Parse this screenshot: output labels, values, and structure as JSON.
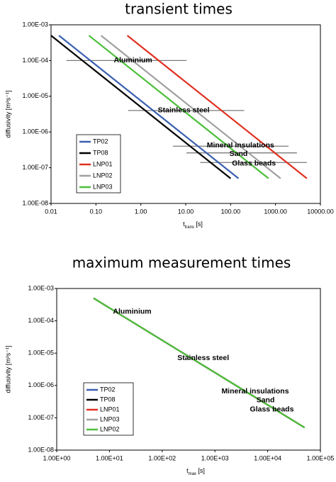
{
  "chart_data": [
    {
      "type": "line",
      "title": "transient times",
      "xlabel": [
        "t",
        "trans",
        " [s]"
      ],
      "ylabel": "diffusivity [m²s⁻¹]",
      "log_x": true,
      "log_y": true,
      "grid": false,
      "legend": "lower left",
      "xlim": [
        0.01,
        10000
      ],
      "ylim": [
        1e-08,
        0.001
      ],
      "xticks": [
        0.01,
        {
          "value": 0.1,
          "label": "0.10"
        },
        {
          "value": 1,
          "label": "1.00"
        },
        {
          "value": 10,
          "label": "10.00"
        },
        {
          "value": 100,
          "label": "100.00"
        },
        {
          "value": 1000,
          "label": "1000.00"
        },
        {
          "value": 10000,
          "label": "10000.00"
        }
      ],
      "yticks": [
        {
          "value": 1e-08,
          "label": "1.00E-08"
        },
        {
          "value": 1e-07,
          "label": "1.00E-07"
        },
        {
          "value": 1e-06,
          "label": "1.00E-06"
        },
        {
          "value": 1e-05,
          "label": "1.00E-05"
        },
        {
          "value": 0.0001,
          "label": "1.00E-04"
        },
        {
          "value": 0.001,
          "label": "1.00E-03"
        }
      ],
      "series": [
        {
          "name": "TP02",
          "color": "#3a5fb0",
          "x": [
            0.015,
            150
          ],
          "values": [
            0.0005,
            5e-08
          ]
        },
        {
          "name": "TP08",
          "color": "#000000",
          "x": [
            0.01,
            100
          ],
          "values": [
            0.0005,
            5e-08
          ]
        },
        {
          "name": "LNP01",
          "color": "#e03020",
          "x": [
            0.5,
            5000
          ],
          "values": [
            0.0005,
            5e-08
          ]
        },
        {
          "name": "LNP02",
          "color": "#a0a0a0",
          "x": [
            0.13,
            1300
          ],
          "values": [
            0.0005,
            5e-08
          ]
        },
        {
          "name": "LNP03",
          "color": "#4cbf3a",
          "x": [
            0.07,
            700
          ],
          "values": [
            0.0005,
            5e-08
          ]
        }
      ],
      "ranges": [
        {
          "x": [
            0.022,
            10.4
          ],
          "y": 0.0001
        },
        {
          "x": [
            0.52,
            200
          ],
          "y": 4e-06
        },
        {
          "x": [
            5.2,
            1950
          ],
          "y": 4e-07
        },
        {
          "x": [
            10.4,
            3000
          ],
          "y": 2.6e-07
        },
        {
          "x": [
            21,
            5000
          ],
          "y": 1.4e-07
        }
      ],
      "annotations": [
        {
          "text": "Aluminium",
          "x": 0.67,
          "y": 0.0001
        },
        {
          "text": "Stainless steel",
          "x": 9,
          "y": 4e-06
        },
        {
          "text": "Mineral insulations",
          "x": 166,
          "y": 4.2e-07
        },
        {
          "text": "Sand",
          "x": 150,
          "y": 2.4e-07
        },
        {
          "text": "Glass beads",
          "x": 330,
          "y": 1.3e-07
        }
      ]
    },
    {
      "type": "line",
      "title": "maximum measurement times",
      "xlabel": [
        "t",
        "max",
        " [s]"
      ],
      "ylabel": "diffusivity [m²s⁻¹]",
      "log_x": true,
      "log_y": true,
      "grid": false,
      "legend": "lower left",
      "xlim": [
        1,
        100000
      ],
      "ylim": [
        1e-08,
        0.001
      ],
      "xticks": [
        {
          "value": 1,
          "label": "1.00E+00"
        },
        {
          "value": 10,
          "label": "1.00E+01"
        },
        {
          "value": 100,
          "label": "1.00E+02"
        },
        {
          "value": 1000,
          "label": "1.00E+03"
        },
        {
          "value": 10000,
          "label": "1.00E+04"
        },
        {
          "value": 100000,
          "label": "1.00E+05"
        }
      ],
      "yticks": [
        {
          "value": 1e-08,
          "label": "1.00E-08"
        },
        {
          "value": 1e-07,
          "label": "1.00E-07"
        },
        {
          "value": 1e-06,
          "label": "1.00E-06"
        },
        {
          "value": 1e-05,
          "label": "1.00E-05"
        },
        {
          "value": 0.0001,
          "label": "1.00E-04"
        },
        {
          "value": 0.001,
          "label": "1.00E-03"
        }
      ],
      "series": [
        {
          "name": "TP02",
          "color": "#3a5fb0",
          "x": [
            5,
            50000
          ],
          "values": [
            0.0005,
            5e-08
          ]
        },
        {
          "name": "TP08",
          "color": "#000000",
          "x": [
            5,
            50000
          ],
          "values": [
            0.0005,
            5e-08
          ]
        },
        {
          "name": "LNP01",
          "color": "#e03020",
          "x": [
            5,
            50000
          ],
          "values": [
            0.0005,
            5e-08
          ]
        },
        {
          "name": "LNP03",
          "color": "#a0a0a0",
          "x": [
            5,
            50000
          ],
          "values": [
            0.0005,
            5e-08
          ]
        },
        {
          "name": "LNP02",
          "color": "#4cbf3a",
          "x": [
            5,
            50000
          ],
          "values": [
            0.0005,
            5e-08
          ]
        }
      ],
      "annotations": [
        {
          "text": "Aluminium",
          "x": 27,
          "y": 0.00019
        },
        {
          "text": "Stainless steel",
          "x": 600,
          "y": 7e-06
        },
        {
          "text": "Mineral insulations",
          "x": 5800,
          "y": 6.6e-07
        },
        {
          "text": "Sand",
          "x": 9100,
          "y": 3.5e-07
        },
        {
          "text": "Glass beads",
          "x": 12000,
          "y": 1.8e-07
        }
      ]
    }
  ]
}
